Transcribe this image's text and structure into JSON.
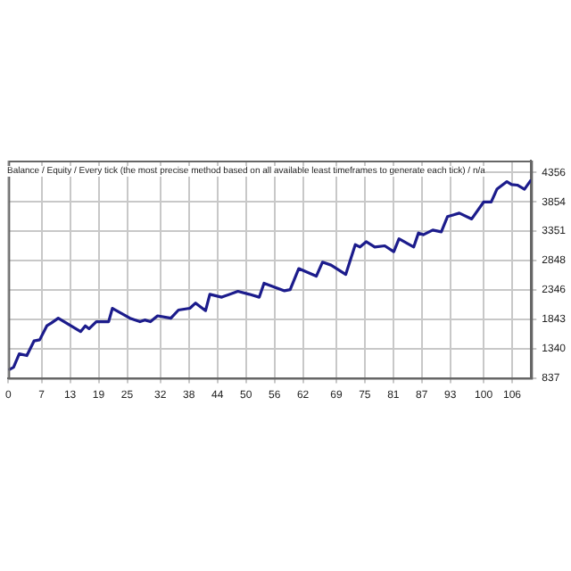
{
  "chart_data": {
    "type": "line",
    "title": "Balance / Equity / Every tick (the most precise method based on all available least timeframes to generate each tick) / n/a",
    "grid": true,
    "marker": "none",
    "line_style": "solid",
    "xlim": [
      0,
      110
    ],
    "xticks": [
      0,
      7,
      13,
      19,
      25,
      32,
      38,
      44,
      50,
      56,
      62,
      69,
      75,
      81,
      87,
      93,
      100,
      106
    ],
    "ylim": [
      837,
      4560
    ],
    "yticks": [
      837,
      1340,
      1843,
      2346,
      2848,
      3351,
      3854,
      4356
    ],
    "series": [
      {
        "color": "#1c1c8c",
        "x": [
          0,
          1.1,
          2.3,
          3.9,
          5.4,
          6.6,
          8.1,
          9.1,
          10.5,
          15.2,
          16.2,
          17,
          18.5,
          21.1,
          21.9,
          25.6,
          27.7,
          28.7,
          29.9,
          31.4,
          34.2,
          35.8,
          38.2,
          39.4,
          41.5,
          42.4,
          44.9,
          48.3,
          50.7,
          52.8,
          53.8,
          58.1,
          59.3,
          61.1,
          64.8,
          66.1,
          67.9,
          71,
          73,
          74,
          75.3,
          77.1,
          79.2,
          81.1,
          82.2,
          85.3,
          86.3,
          87.3,
          89.3,
          91.1,
          92.4,
          94.9,
          97.5,
          100,
          101.6,
          102.8,
          104.9,
          105.9,
          107.1,
          108.6,
          110
        ],
        "values": [
          970,
          1020,
          1250,
          1220,
          1470,
          1490,
          1730,
          1780,
          1860,
          1630,
          1730,
          1680,
          1800,
          1800,
          2030,
          1860,
          1800,
          1830,
          1800,
          1900,
          1860,
          2000,
          2030,
          2120,
          1990,
          2270,
          2220,
          2320,
          2270,
          2220,
          2460,
          2330,
          2350,
          2710,
          2580,
          2820,
          2770,
          2610,
          3120,
          3080,
          3170,
          3080,
          3100,
          3000,
          3220,
          3080,
          3320,
          3290,
          3370,
          3340,
          3600,
          3660,
          3560,
          3850,
          3850,
          4070,
          4200,
          4150,
          4140,
          4070,
          4230
        ]
      }
    ]
  }
}
